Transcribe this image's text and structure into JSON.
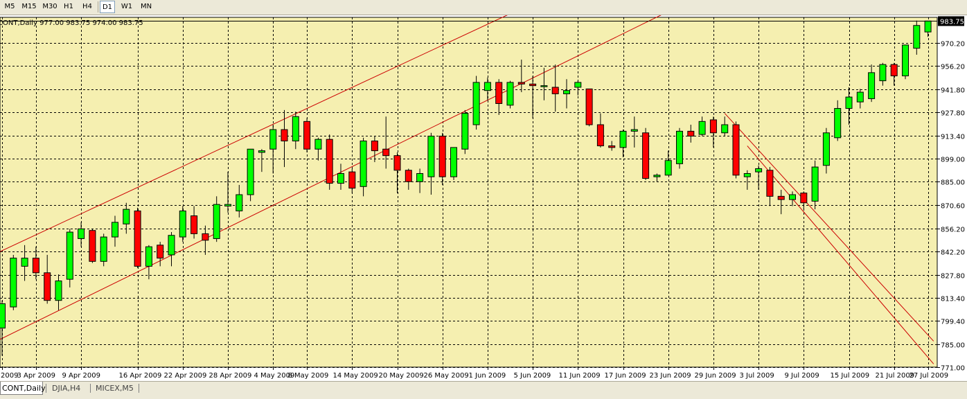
{
  "toolbar": {
    "timeframes": [
      {
        "label": "M5",
        "active": false
      },
      {
        "label": "M15",
        "active": false
      },
      {
        "label": "M30",
        "active": false
      },
      {
        "label": "H1",
        "active": false
      },
      {
        "label": "H4",
        "active": false
      },
      {
        "label": "D1",
        "active": true
      },
      {
        "label": "W1",
        "active": false
      },
      {
        "label": "MN",
        "active": false
      }
    ]
  },
  "chart": {
    "info_label": "CONT,Daily  977.00 983.75 974.00 983.75",
    "current_price_label": "983.75",
    "colors": {
      "background": "#f5efb0",
      "grid": "#000000",
      "bull": "#00ff00",
      "bear": "#ff0000",
      "trendline": "#cc0000",
      "price_marker": "#000000"
    }
  },
  "chart_data": {
    "type": "candlestick",
    "symbol": "CONT",
    "timeframe": "Daily",
    "current_price": 983.75,
    "ohlc_last": {
      "open": 977.0,
      "high": 983.75,
      "low": 974.0,
      "close": 983.75
    },
    "y_ticks": [
      771.0,
      785.0,
      799.4,
      813.4,
      827.8,
      842.2,
      856.2,
      870.6,
      885.0,
      899.0,
      913.4,
      927.8,
      941.8,
      956.2,
      970.2
    ],
    "ylim": [
      771.0,
      986.0
    ],
    "x_labels": [
      "2009",
      "3 Apr 2009",
      "9 Apr 2009",
      "16 Apr 2009",
      "22 Apr 2009",
      "28 Apr 2009",
      "4 May 2009",
      "8 May 2009",
      "14 May 2009",
      "20 May 2009",
      "26 May 2009",
      "1 Jun 2009",
      "5 Jun 2009",
      "11 Jun 2009",
      "17 Jun 2009",
      "23 Jun 2009",
      "29 Jun 2009",
      "3 Jul 2009",
      "9 Jul 2009",
      "15 Jul 2009",
      "21 Jul 2009",
      "27 Jul 2009"
    ],
    "candles": [
      {
        "o": 795,
        "h": 812,
        "l": 778,
        "c": 810
      },
      {
        "o": 808,
        "h": 840,
        "l": 806,
        "c": 838
      },
      {
        "o": 833,
        "h": 846,
        "l": 824,
        "c": 838
      },
      {
        "o": 838,
        "h": 845,
        "l": 825,
        "c": 829
      },
      {
        "o": 829,
        "h": 840,
        "l": 810,
        "c": 812
      },
      {
        "o": 812,
        "h": 828,
        "l": 806,
        "c": 824
      },
      {
        "o": 825,
        "h": 856,
        "l": 820,
        "c": 854
      },
      {
        "o": 850,
        "h": 860,
        "l": 845,
        "c": 856
      },
      {
        "o": 855,
        "h": 856,
        "l": 835,
        "c": 836
      },
      {
        "o": 836,
        "h": 853,
        "l": 833,
        "c": 851
      },
      {
        "o": 851,
        "h": 864,
        "l": 845,
        "c": 860
      },
      {
        "o": 859,
        "h": 872,
        "l": 853,
        "c": 868
      },
      {
        "o": 867,
        "h": 869,
        "l": 832,
        "c": 833
      },
      {
        "o": 833,
        "h": 846,
        "l": 825,
        "c": 845
      },
      {
        "o": 846,
        "h": 848,
        "l": 833,
        "c": 838
      },
      {
        "o": 840,
        "h": 854,
        "l": 833,
        "c": 852
      },
      {
        "o": 851,
        "h": 870,
        "l": 848,
        "c": 867
      },
      {
        "o": 864,
        "h": 870,
        "l": 850,
        "c": 853
      },
      {
        "o": 853,
        "h": 858,
        "l": 840,
        "c": 849
      },
      {
        "o": 850,
        "h": 876,
        "l": 848,
        "c": 871
      },
      {
        "o": 870,
        "h": 891,
        "l": 866,
        "c": 871
      },
      {
        "o": 867,
        "h": 883,
        "l": 863,
        "c": 877
      },
      {
        "o": 877,
        "h": 905,
        "l": 873,
        "c": 905
      },
      {
        "o": 903,
        "h": 905,
        "l": 891,
        "c": 904
      },
      {
        "o": 905,
        "h": 920,
        "l": 890,
        "c": 917
      },
      {
        "o": 917,
        "h": 929,
        "l": 894,
        "c": 910
      },
      {
        "o": 910,
        "h": 928,
        "l": 905,
        "c": 925
      },
      {
        "o": 922,
        "h": 924,
        "l": 903,
        "c": 905
      },
      {
        "o": 905,
        "h": 912,
        "l": 898,
        "c": 911
      },
      {
        "o": 911,
        "h": 914,
        "l": 880,
        "c": 884
      },
      {
        "o": 884,
        "h": 896,
        "l": 880,
        "c": 890
      },
      {
        "o": 891,
        "h": 893,
        "l": 878,
        "c": 881
      },
      {
        "o": 882,
        "h": 912,
        "l": 876,
        "c": 910
      },
      {
        "o": 910,
        "h": 913,
        "l": 897,
        "c": 904
      },
      {
        "o": 905,
        "h": 925,
        "l": 893,
        "c": 901
      },
      {
        "o": 901,
        "h": 903,
        "l": 878,
        "c": 892
      },
      {
        "o": 892,
        "h": 893,
        "l": 880,
        "c": 885
      },
      {
        "o": 885,
        "h": 893,
        "l": 878,
        "c": 890
      },
      {
        "o": 888,
        "h": 915,
        "l": 877,
        "c": 913
      },
      {
        "o": 913,
        "h": 915,
        "l": 883,
        "c": 888
      },
      {
        "o": 888,
        "h": 905,
        "l": 886,
        "c": 906
      },
      {
        "o": 905,
        "h": 929,
        "l": 902,
        "c": 927
      },
      {
        "o": 920,
        "h": 950,
        "l": 917,
        "c": 946
      },
      {
        "o": 941,
        "h": 949,
        "l": 935,
        "c": 946
      },
      {
        "o": 946,
        "h": 948,
        "l": 926,
        "c": 933
      },
      {
        "o": 932,
        "h": 947,
        "l": 930,
        "c": 946
      },
      {
        "o": 946,
        "h": 960,
        "l": 940,
        "c": 945
      },
      {
        "o": 945,
        "h": 950,
        "l": 924,
        "c": 944
      },
      {
        "o": 944,
        "h": 955,
        "l": 935,
        "c": 944
      },
      {
        "o": 943,
        "h": 957,
        "l": 928,
        "c": 939
      },
      {
        "o": 939,
        "h": 948,
        "l": 930,
        "c": 941
      },
      {
        "o": 943,
        "h": 947,
        "l": 938,
        "c": 946
      },
      {
        "o": 942,
        "h": 942,
        "l": 919,
        "c": 920
      },
      {
        "o": 920,
        "h": 927,
        "l": 906,
        "c": 907
      },
      {
        "o": 907,
        "h": 910,
        "l": 904,
        "c": 906
      },
      {
        "o": 906,
        "h": 917,
        "l": 900,
        "c": 916
      },
      {
        "o": 916,
        "h": 925,
        "l": 906,
        "c": 917
      },
      {
        "o": 915,
        "h": 918,
        "l": 886,
        "c": 887
      },
      {
        "o": 888,
        "h": 890,
        "l": 885,
        "c": 889
      },
      {
        "o": 889,
        "h": 904,
        "l": 889,
        "c": 898
      },
      {
        "o": 896,
        "h": 918,
        "l": 893,
        "c": 916
      },
      {
        "o": 916,
        "h": 920,
        "l": 909,
        "c": 913
      },
      {
        "o": 914,
        "h": 925,
        "l": 913,
        "c": 922
      },
      {
        "o": 923,
        "h": 925,
        "l": 906,
        "c": 915
      },
      {
        "o": 915,
        "h": 925,
        "l": 913,
        "c": 920
      },
      {
        "o": 920,
        "h": 922,
        "l": 887,
        "c": 889
      },
      {
        "o": 888,
        "h": 892,
        "l": 880,
        "c": 890
      },
      {
        "o": 891,
        "h": 895,
        "l": 880,
        "c": 893
      },
      {
        "o": 892,
        "h": 894,
        "l": 870,
        "c": 876
      },
      {
        "o": 876,
        "h": 880,
        "l": 865,
        "c": 874
      },
      {
        "o": 874,
        "h": 879,
        "l": 870,
        "c": 877
      },
      {
        "o": 878,
        "h": 879,
        "l": 868,
        "c": 872
      },
      {
        "o": 873,
        "h": 898,
        "l": 868,
        "c": 894
      },
      {
        "o": 895,
        "h": 918,
        "l": 890,
        "c": 915
      },
      {
        "o": 912,
        "h": 935,
        "l": 910,
        "c": 930
      },
      {
        "o": 930,
        "h": 943,
        "l": 920,
        "c": 937
      },
      {
        "o": 934,
        "h": 942,
        "l": 930,
        "c": 940
      },
      {
        "o": 936,
        "h": 957,
        "l": 934,
        "c": 952
      },
      {
        "o": 947,
        "h": 958,
        "l": 944,
        "c": 957
      },
      {
        "o": 957,
        "h": 958,
        "l": 944,
        "c": 950
      },
      {
        "o": 950,
        "h": 968,
        "l": 948,
        "c": 969
      },
      {
        "o": 967,
        "h": 984,
        "l": 963,
        "c": 981
      },
      {
        "o": 977,
        "h": 983.75,
        "l": 974,
        "c": 983.75
      }
    ],
    "trendlines": [
      {
        "from": {
          "x_index": -0.5,
          "price": 841
        },
        "to": {
          "x_index": 61,
          "price": 1040
        }
      },
      {
        "from": {
          "x_index": -0.5,
          "price": 787
        },
        "to": {
          "x_index": 65,
          "price": 1010
        }
      },
      {
        "from": {
          "x_index": 64,
          "price": 927
        },
        "to": {
          "x_index": 82.5,
          "price": 787
        }
      },
      {
        "from": {
          "x_index": 66,
          "price": 907
        },
        "to": {
          "x_index": 82.5,
          "price": 773
        }
      }
    ],
    "grid": true
  },
  "symbol_tabs": [
    {
      "label": "CONT,Daily",
      "active": true
    },
    {
      "label": "DJIA,H4",
      "active": false
    },
    {
      "label": "MICEX,M5",
      "active": false
    }
  ]
}
